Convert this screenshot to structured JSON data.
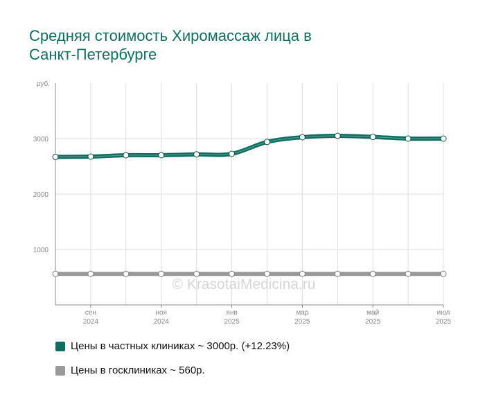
{
  "title_lines": [
    "Средняя стоимость Хиромассаж лица в",
    "Санкт-Петербурге"
  ],
  "watermark": "© KrasotaiMedicina.ru",
  "colors": {
    "title": "#0e6f61",
    "private": "#0e6f61",
    "public": "#999999",
    "grid": "#dddddd"
  },
  "legend": {
    "private_label": "Цены в частных клиниках ~ 3000р. (+12.23%)",
    "public_label": "Цены в госклиниках ~ 560р."
  },
  "chart_data": {
    "type": "line",
    "y_unit_label": "руб.",
    "ylim": [
      0,
      4000
    ],
    "y_ticks": [
      1000,
      2000,
      3000
    ],
    "x_tick_labels": [
      {
        "month": "сен",
        "year": "2024"
      },
      {
        "month": "ноя",
        "year": "2024"
      },
      {
        "month": "янв",
        "year": "2025"
      },
      {
        "month": "мар",
        "year": "2025"
      },
      {
        "month": "май",
        "year": "2025"
      },
      {
        "month": "июл",
        "year": "2025"
      }
    ],
    "x_tick_points": [
      1,
      3,
      5,
      7,
      9,
      11
    ],
    "series": [
      {
        "name": "Цены в частных клиниках",
        "values": [
          2670,
          2675,
          2700,
          2700,
          2715,
          2725,
          2940,
          3025,
          3050,
          3030,
          3000,
          3000
        ]
      },
      {
        "name": "Цены в госклиниках",
        "values": [
          560,
          560,
          560,
          560,
          560,
          560,
          560,
          560,
          560,
          560,
          560,
          560
        ]
      }
    ],
    "grid": true
  }
}
